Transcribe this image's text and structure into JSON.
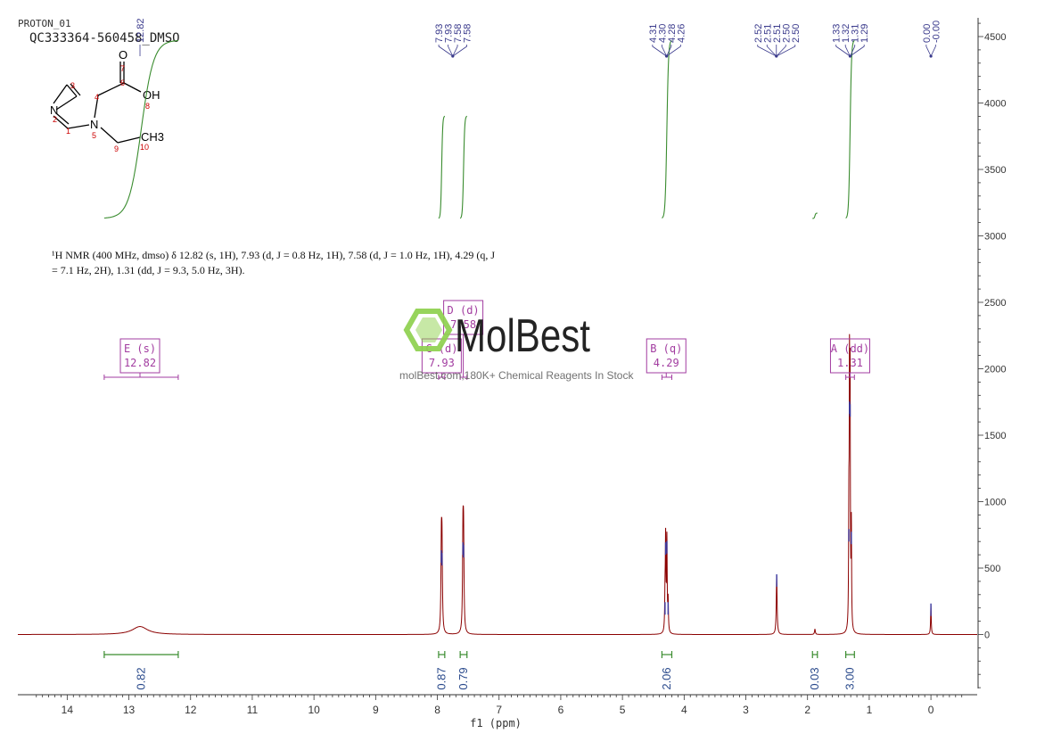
{
  "header": {
    "experiment": "PROTON_01",
    "sample": "QC333364-560458_DMSO"
  },
  "structure": {
    "atoms": [
      {
        "id": "N2",
        "symbol": "N",
        "number": "2"
      },
      {
        "id": "N5",
        "symbol": "N",
        "number": "5"
      },
      {
        "id": "O7",
        "symbol": "O",
        "number": "7"
      },
      {
        "id": "OH8",
        "symbol": "OH",
        "number": "8"
      },
      {
        "id": "CH3",
        "symbol": "CH3",
        "number": "10"
      }
    ],
    "carbon_numbers": [
      "1",
      "3",
      "4",
      "6",
      "9"
    ],
    "colors": {
      "bonds": "#000000",
      "numbers": "#cc0000"
    }
  },
  "summary": {
    "line1": "¹H NMR (400 MHz, dmso) δ 12.82 (s, 1H), 7.93 (d, J = 0.8 Hz, 1H), 7.58 (d, J = 1.0 Hz, 1H), 4.29 (q, J",
    "line2": "= 7.1 Hz, 2H), 1.31 (dd, J = 9.3, 5.0 Hz, 3H)."
  },
  "watermark": {
    "brand": "MolBest",
    "tagline": "molBest.com,180K+ Chemical Reagents In Stock"
  },
  "colors": {
    "spectrum": "#8b0000",
    "integral": "#3a8c2f",
    "multiplet_box": "#a23ca0",
    "peak_label": "#3a3a8c",
    "axis": "#333333"
  },
  "chart_data": {
    "type": "line",
    "xlabel": "f1 (ppm)",
    "xlim": [
      14.8,
      -0.75
    ],
    "x_ticks": [
      14,
      13,
      12,
      11,
      10,
      9,
      8,
      7,
      6,
      5,
      4,
      3,
      2,
      1,
      0
    ],
    "y_right_ticks": [
      0,
      500,
      1000,
      1500,
      2000,
      2500,
      3000,
      3500,
      4000,
      4500
    ],
    "ylim": [
      -450,
      4650
    ],
    "peaks": [
      {
        "ppm": 12.82,
        "height": 60,
        "width": 0.15
      },
      {
        "ppm": 7.935,
        "height": 620,
        "width": 0.008
      },
      {
        "ppm": 7.925,
        "height": 600,
        "width": 0.008
      },
      {
        "ppm": 7.585,
        "height": 680,
        "width": 0.008
      },
      {
        "ppm": 7.575,
        "height": 660,
        "width": 0.008
      },
      {
        "ppm": 4.31,
        "height": 230,
        "width": 0.006
      },
      {
        "ppm": 4.3,
        "height": 680,
        "width": 0.006
      },
      {
        "ppm": 4.28,
        "height": 690,
        "width": 0.006
      },
      {
        "ppm": 4.26,
        "height": 230,
        "width": 0.006
      },
      {
        "ppm": 2.5,
        "height": 440,
        "width": 0.008
      },
      {
        "ppm": 1.88,
        "height": 40,
        "width": 0.008
      },
      {
        "ppm": 1.33,
        "height": 780,
        "width": 0.005
      },
      {
        "ppm": 1.32,
        "height": 1740,
        "width": 0.005
      },
      {
        "ppm": 1.31,
        "height": 1720,
        "width": 0.005
      },
      {
        "ppm": 1.29,
        "height": 760,
        "width": 0.005
      },
      {
        "ppm": 0.0,
        "height": 220,
        "width": 0.006
      }
    ],
    "peak_label_groups": [
      {
        "labels": [
          "12.82"
        ],
        "ppm": 12.82
      },
      {
        "labels": [
          "7.93",
          "7.93",
          "7.58",
          "7.58"
        ],
        "ppm": 7.75
      },
      {
        "labels": [
          "4.31",
          "4.30",
          "4.28",
          "4.26"
        ],
        "ppm": 4.285
      },
      {
        "labels": [
          "2.52",
          "2.51",
          "2.51",
          "2.50",
          "2.50"
        ],
        "ppm": 2.505
      },
      {
        "labels": [
          "1.33",
          "1.32",
          "1.31",
          "1.29"
        ],
        "ppm": 1.31
      },
      {
        "labels": [
          "0.00",
          "-0.00"
        ],
        "ppm": 0.0
      }
    ],
    "integrals": [
      {
        "from": 13.4,
        "to": 12.2,
        "value": "0.82",
        "rise": 210
      },
      {
        "from": 7.98,
        "to": 7.88,
        "value": "0.87",
        "rise": 115
      },
      {
        "from": 7.63,
        "to": 7.52,
        "value": "0.79",
        "rise": 115
      },
      {
        "from": 4.36,
        "to": 4.2,
        "value": "2.06",
        "rise": 470
      },
      {
        "from": 1.92,
        "to": 1.84,
        "value": "0.03",
        "rise": 6
      },
      {
        "from": 1.38,
        "to": 1.24,
        "value": "3.00",
        "rise": 800
      }
    ],
    "multiplets": [
      {
        "name": "E (s)",
        "shift": "12.82",
        "ppm": 12.82,
        "from": 13.4,
        "to": 12.2
      },
      {
        "name": "C (d)",
        "shift": "7.93",
        "ppm": 7.93,
        "from": 7.98,
        "to": 7.88
      },
      {
        "name": "D (d)",
        "shift": "7.58",
        "ppm": 7.58,
        "from": 7.63,
        "to": 7.52
      },
      {
        "name": "B (q)",
        "shift": "4.29",
        "ppm": 4.29,
        "from": 4.36,
        "to": 4.2
      },
      {
        "name": "A (dd)",
        "shift": "1.31",
        "ppm": 1.31,
        "from": 1.38,
        "to": 1.24
      }
    ]
  }
}
